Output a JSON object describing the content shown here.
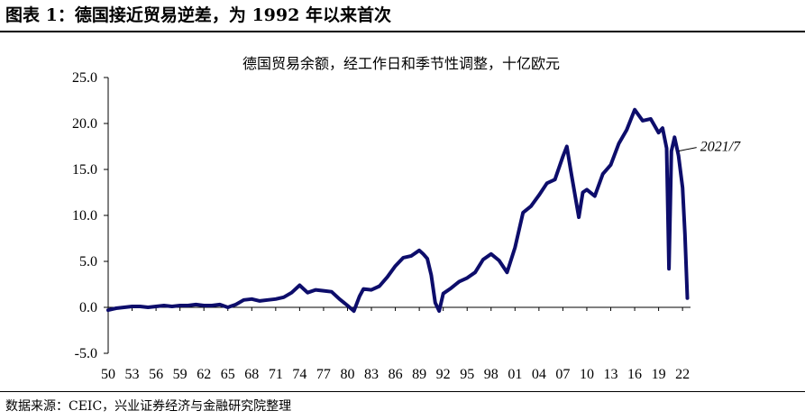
{
  "figure": {
    "title": "图表 1：德国接近贸易逆差，为 1992 年以来首次",
    "source": "数据来源：CEIC，兴业证券经济与金融研究院整理"
  },
  "chart_data": {
    "type": "line",
    "title": "德国贸易余额，经工作日和季节性调整，十亿欧元",
    "xlabel": "",
    "ylabel": "",
    "ylim": [
      -5,
      25
    ],
    "xlim": [
      1950,
      2023
    ],
    "yticks": [
      "25.0",
      "20.0",
      "15.0",
      "10.0",
      "5.0",
      "0.0",
      "-5.0"
    ],
    "xticks": [
      "50",
      "53",
      "56",
      "59",
      "62",
      "65",
      "68",
      "71",
      "74",
      "77",
      "80",
      "83",
      "86",
      "89",
      "92",
      "95",
      "98",
      "01",
      "04",
      "07",
      "10",
      "13",
      "16",
      "19",
      "22"
    ],
    "grid": false,
    "legend": "none",
    "line_color": "#0d0d6b",
    "annotation": {
      "text": "2021/7",
      "x": 2021.5,
      "y": 17.0
    },
    "series": [
      {
        "x": [
          1950,
          1951,
          1952,
          1953,
          1954,
          1955,
          1956,
          1957,
          1958,
          1959,
          1960,
          1961,
          1962,
          1963,
          1964,
          1965,
          1966,
          1967,
          1968,
          1969,
          1970,
          1971,
          1972,
          1973,
          1974,
          1974.5,
          1975,
          1976,
          1977,
          1978,
          1979,
          1980,
          1980.8,
          1981.5,
          1982,
          1983,
          1984,
          1985,
          1986,
          1987,
          1988,
          1989,
          1989.5,
          1990,
          1990.5,
          1991,
          1991.5,
          1992,
          1993,
          1994,
          1995,
          1996,
          1997,
          1998,
          1999,
          2000,
          2001,
          2002,
          2003,
          2004,
          2005,
          2006,
          2007,
          2007.5,
          2008,
          2009,
          2009.5,
          2010,
          2011,
          2012,
          2013,
          2014,
          2015,
          2016,
          2017,
          2018,
          2019,
          2019.5,
          2020,
          2020.3,
          2020.6,
          2021,
          2021.5,
          2022,
          2022.3,
          2022.6
        ],
        "values": [
          -0.3,
          -0.1,
          0.0,
          0.1,
          0.1,
          0.0,
          0.1,
          0.2,
          0.1,
          0.2,
          0.2,
          0.3,
          0.2,
          0.2,
          0.3,
          0.0,
          0.3,
          0.8,
          0.9,
          0.7,
          0.8,
          0.9,
          1.1,
          1.6,
          2.4,
          2.0,
          1.6,
          1.9,
          1.8,
          1.7,
          0.9,
          0.2,
          -0.4,
          1.2,
          2.0,
          1.9,
          2.3,
          3.3,
          4.5,
          5.4,
          5.6,
          6.2,
          5.8,
          5.3,
          3.5,
          0.5,
          -0.4,
          1.5,
          2.1,
          2.8,
          3.2,
          3.8,
          5.2,
          5.8,
          5.1,
          3.8,
          6.5,
          10.3,
          11.0,
          12.2,
          13.5,
          13.9,
          16.4,
          17.5,
          14.8,
          9.8,
          12.5,
          12.8,
          12.1,
          14.5,
          15.5,
          17.8,
          19.3,
          21.5,
          20.3,
          20.5,
          19.0,
          19.5,
          17.3,
          4.2,
          17.0,
          18.5,
          16.5,
          13.0,
          8.0,
          1.0
        ]
      }
    ]
  }
}
